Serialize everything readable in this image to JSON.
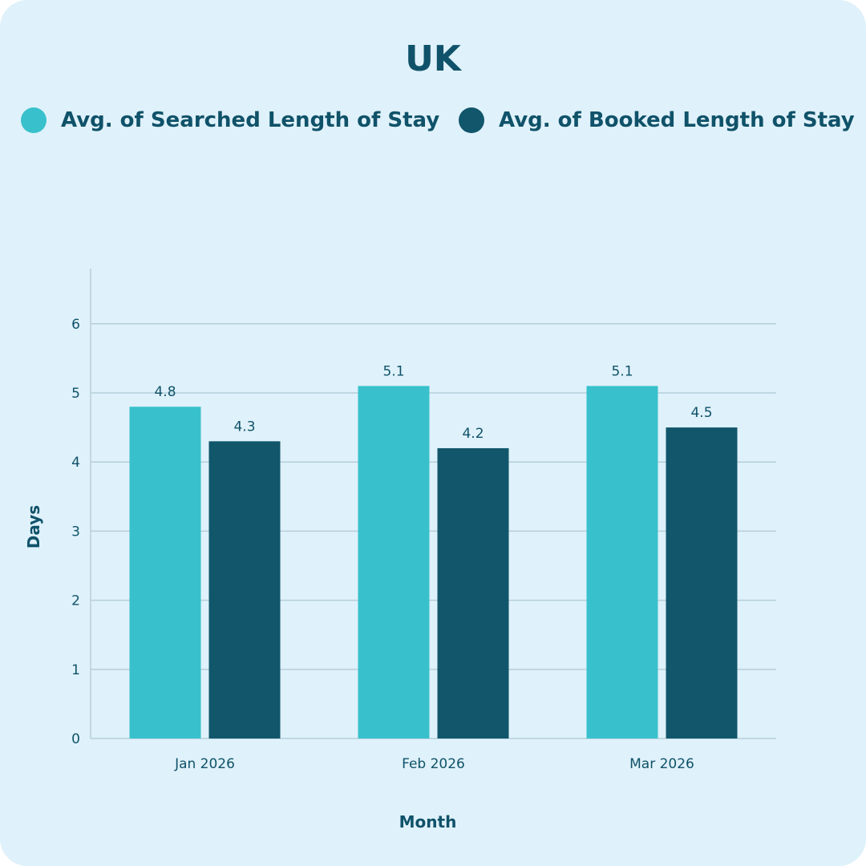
{
  "chart_data": {
    "type": "bar",
    "title": "UK",
    "xlabel": "Month",
    "ylabel": "Days",
    "categories": [
      "Jan 2026",
      "Feb 2026",
      "Mar 2026"
    ],
    "series": [
      {
        "name": "Avg. of Searched Length of Stay",
        "values": [
          4.8,
          5.1,
          5.1
        ],
        "color": "#38c1cc"
      },
      {
        "name": "Avg. of Booked Length of Stay",
        "values": [
          4.3,
          4.2,
          4.5
        ],
        "color": "#11566b"
      }
    ],
    "ylim": [
      0,
      6.8
    ],
    "yticks": [
      0,
      1,
      2,
      3,
      4,
      5,
      6
    ],
    "grid": true,
    "legend_position": "top"
  },
  "colors": {
    "background": "#dff1fa",
    "text": "#0f5269",
    "grid": "#b6cfdc"
  }
}
